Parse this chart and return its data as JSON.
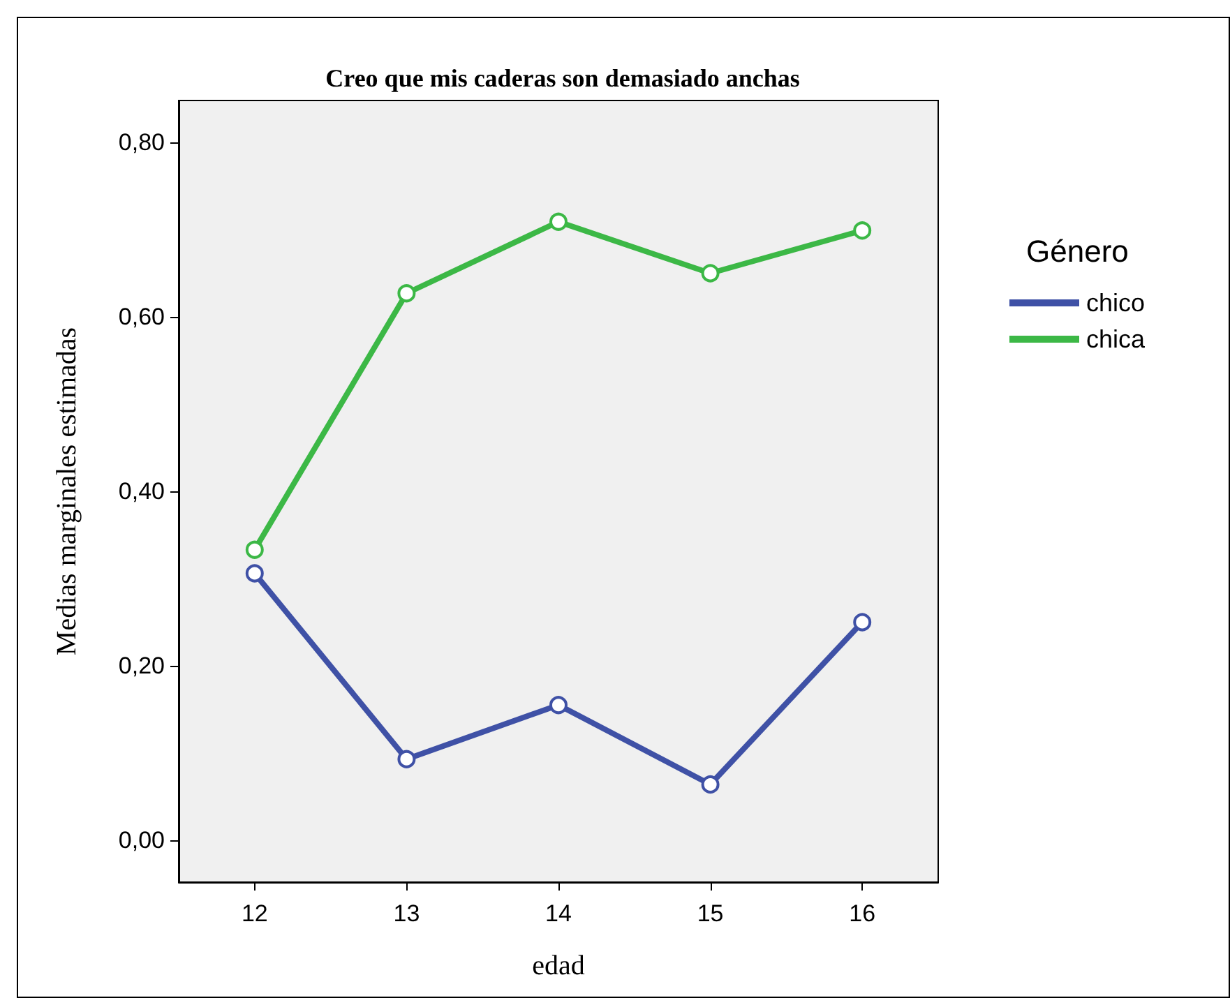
{
  "chart_data": {
    "type": "line",
    "title": "Creo que mis caderas son demasiado anchas",
    "xlabel": "edad",
    "ylabel": "Medias marginales estimadas",
    "legend_title": "Género",
    "categories": [
      "12",
      "13",
      "14",
      "15",
      "16"
    ],
    "series": [
      {
        "name": "chico",
        "color": "#3f51a6",
        "values": [
          0.306,
          0.093,
          0.155,
          0.064,
          0.25
        ]
      },
      {
        "name": "chica",
        "color": "#3cb846",
        "values": [
          0.333,
          0.627,
          0.709,
          0.65,
          0.699
        ]
      }
    ],
    "ylim": [
      -0.048,
      0.848
    ],
    "yticks": [
      {
        "value": 0,
        "label": "0,00"
      },
      {
        "value": 0.2,
        "label": "0,20"
      },
      {
        "value": 0.4,
        "label": "0,40"
      },
      {
        "value": 0.6,
        "label": "0,60"
      },
      {
        "value": 0.8,
        "label": "0,80"
      }
    ],
    "grid": false,
    "legend": "right",
    "marker": "circle",
    "line_style": "solid"
  }
}
